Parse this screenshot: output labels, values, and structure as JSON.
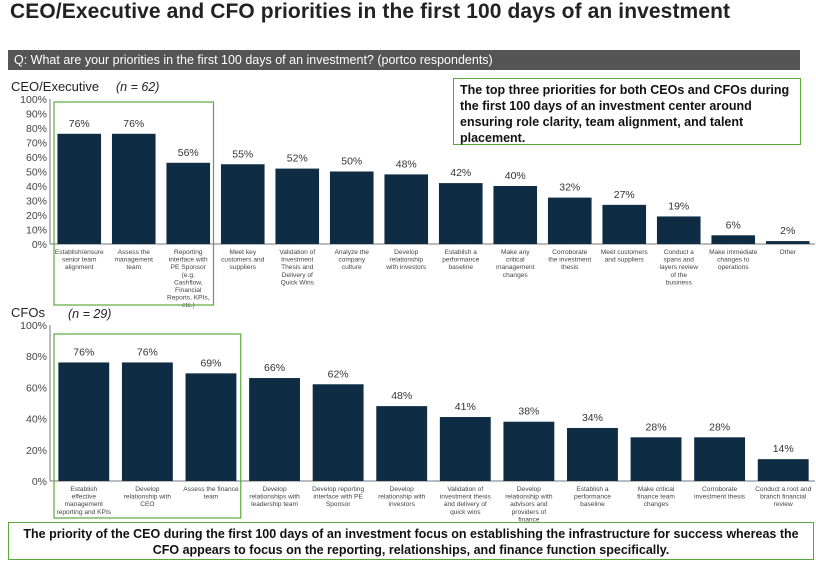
{
  "page": {
    "title": "CEO/Executive and CFO priorities in the first 100 days of an investment",
    "question": "Q: What are your priorities in the first 100 days of an investment? (portco respondents)",
    "callout": "The top three priorities for both CEOs and CFOs during the first 100 days of an investment center around ensuring role clarity, team alignment, and talent placement.",
    "footer": "The priority of the CEO during the first 100 days of an investment focus on establishing the infrastructure for success whereas the CFO appears to focus on the reporting, relationships, and finance function specifically.",
    "colors": {
      "bar": "#0e2c44",
      "highlight_border": "#5aaa3a",
      "question_bar": "#555555"
    }
  },
  "chart_data": [
    {
      "type": "bar",
      "title": "CEO/Executive",
      "subtitle": "(n = 62)",
      "ylim": [
        0,
        100
      ],
      "yticks": [
        "0%",
        "10%",
        "20%",
        "30%",
        "40%",
        "50%",
        "60%",
        "70%",
        "80%",
        "90%",
        "100%"
      ],
      "categories": [
        "Establish/ensure senior team alignment",
        "Assess the management team",
        "Reporting interface with PE Sponsor (e.g. Cashflow, Financial Reports, KPIs, etc.)",
        "Meet key customers and suppliers",
        "Validation of Investment Thesis and Delivery of Quick Wins",
        "Analyze the company culture",
        "Develop relationship with investors",
        "Establish a performance baseline",
        "Make any critical management changes",
        "Corroborate the investment thesis",
        "Meet customers and suppliers",
        "Conduct a spans and layers review of the business",
        "Make immediate changes to operations",
        "Other"
      ],
      "values": [
        76,
        76,
        56,
        55,
        52,
        50,
        48,
        42,
        40,
        32,
        27,
        19,
        6,
        2
      ],
      "labels": [
        "76%",
        "76%",
        "56%",
        "55%",
        "52%",
        "50%",
        "48%",
        "42%",
        "40%",
        "32%",
        "27%",
        "19%",
        "6%",
        "2%"
      ],
      "highlight_first": 3
    },
    {
      "type": "bar",
      "title": "CFOs",
      "subtitle": "(n = 29)",
      "ylim": [
        0,
        100
      ],
      "yticks": [
        "0%",
        "20%",
        "40%",
        "60%",
        "80%",
        "100%"
      ],
      "categories": [
        "Establish effective management reporting and KPIs",
        "Develop relationship with CEO",
        "Assess the finance team",
        "Develop relationships with leadership team",
        "Develop reporting interface with PE Sponsor",
        "Develop relationship with investors",
        "Validation of investment thesis and delivery of quick wins",
        "Develop relationship with advisors and providers of finance",
        "Establish a performance baseline",
        "Make critical finance team changes",
        "Corroborate investment thesis",
        "Conduct a root and branch financial review"
      ],
      "values": [
        76,
        76,
        69,
        66,
        62,
        48,
        41,
        38,
        34,
        28,
        28,
        14
      ],
      "labels": [
        "76%",
        "76%",
        "69%",
        "66%",
        "62%",
        "48%",
        "41%",
        "38%",
        "34%",
        "28%",
        "28%",
        "14%"
      ],
      "highlight_first": 3
    }
  ]
}
